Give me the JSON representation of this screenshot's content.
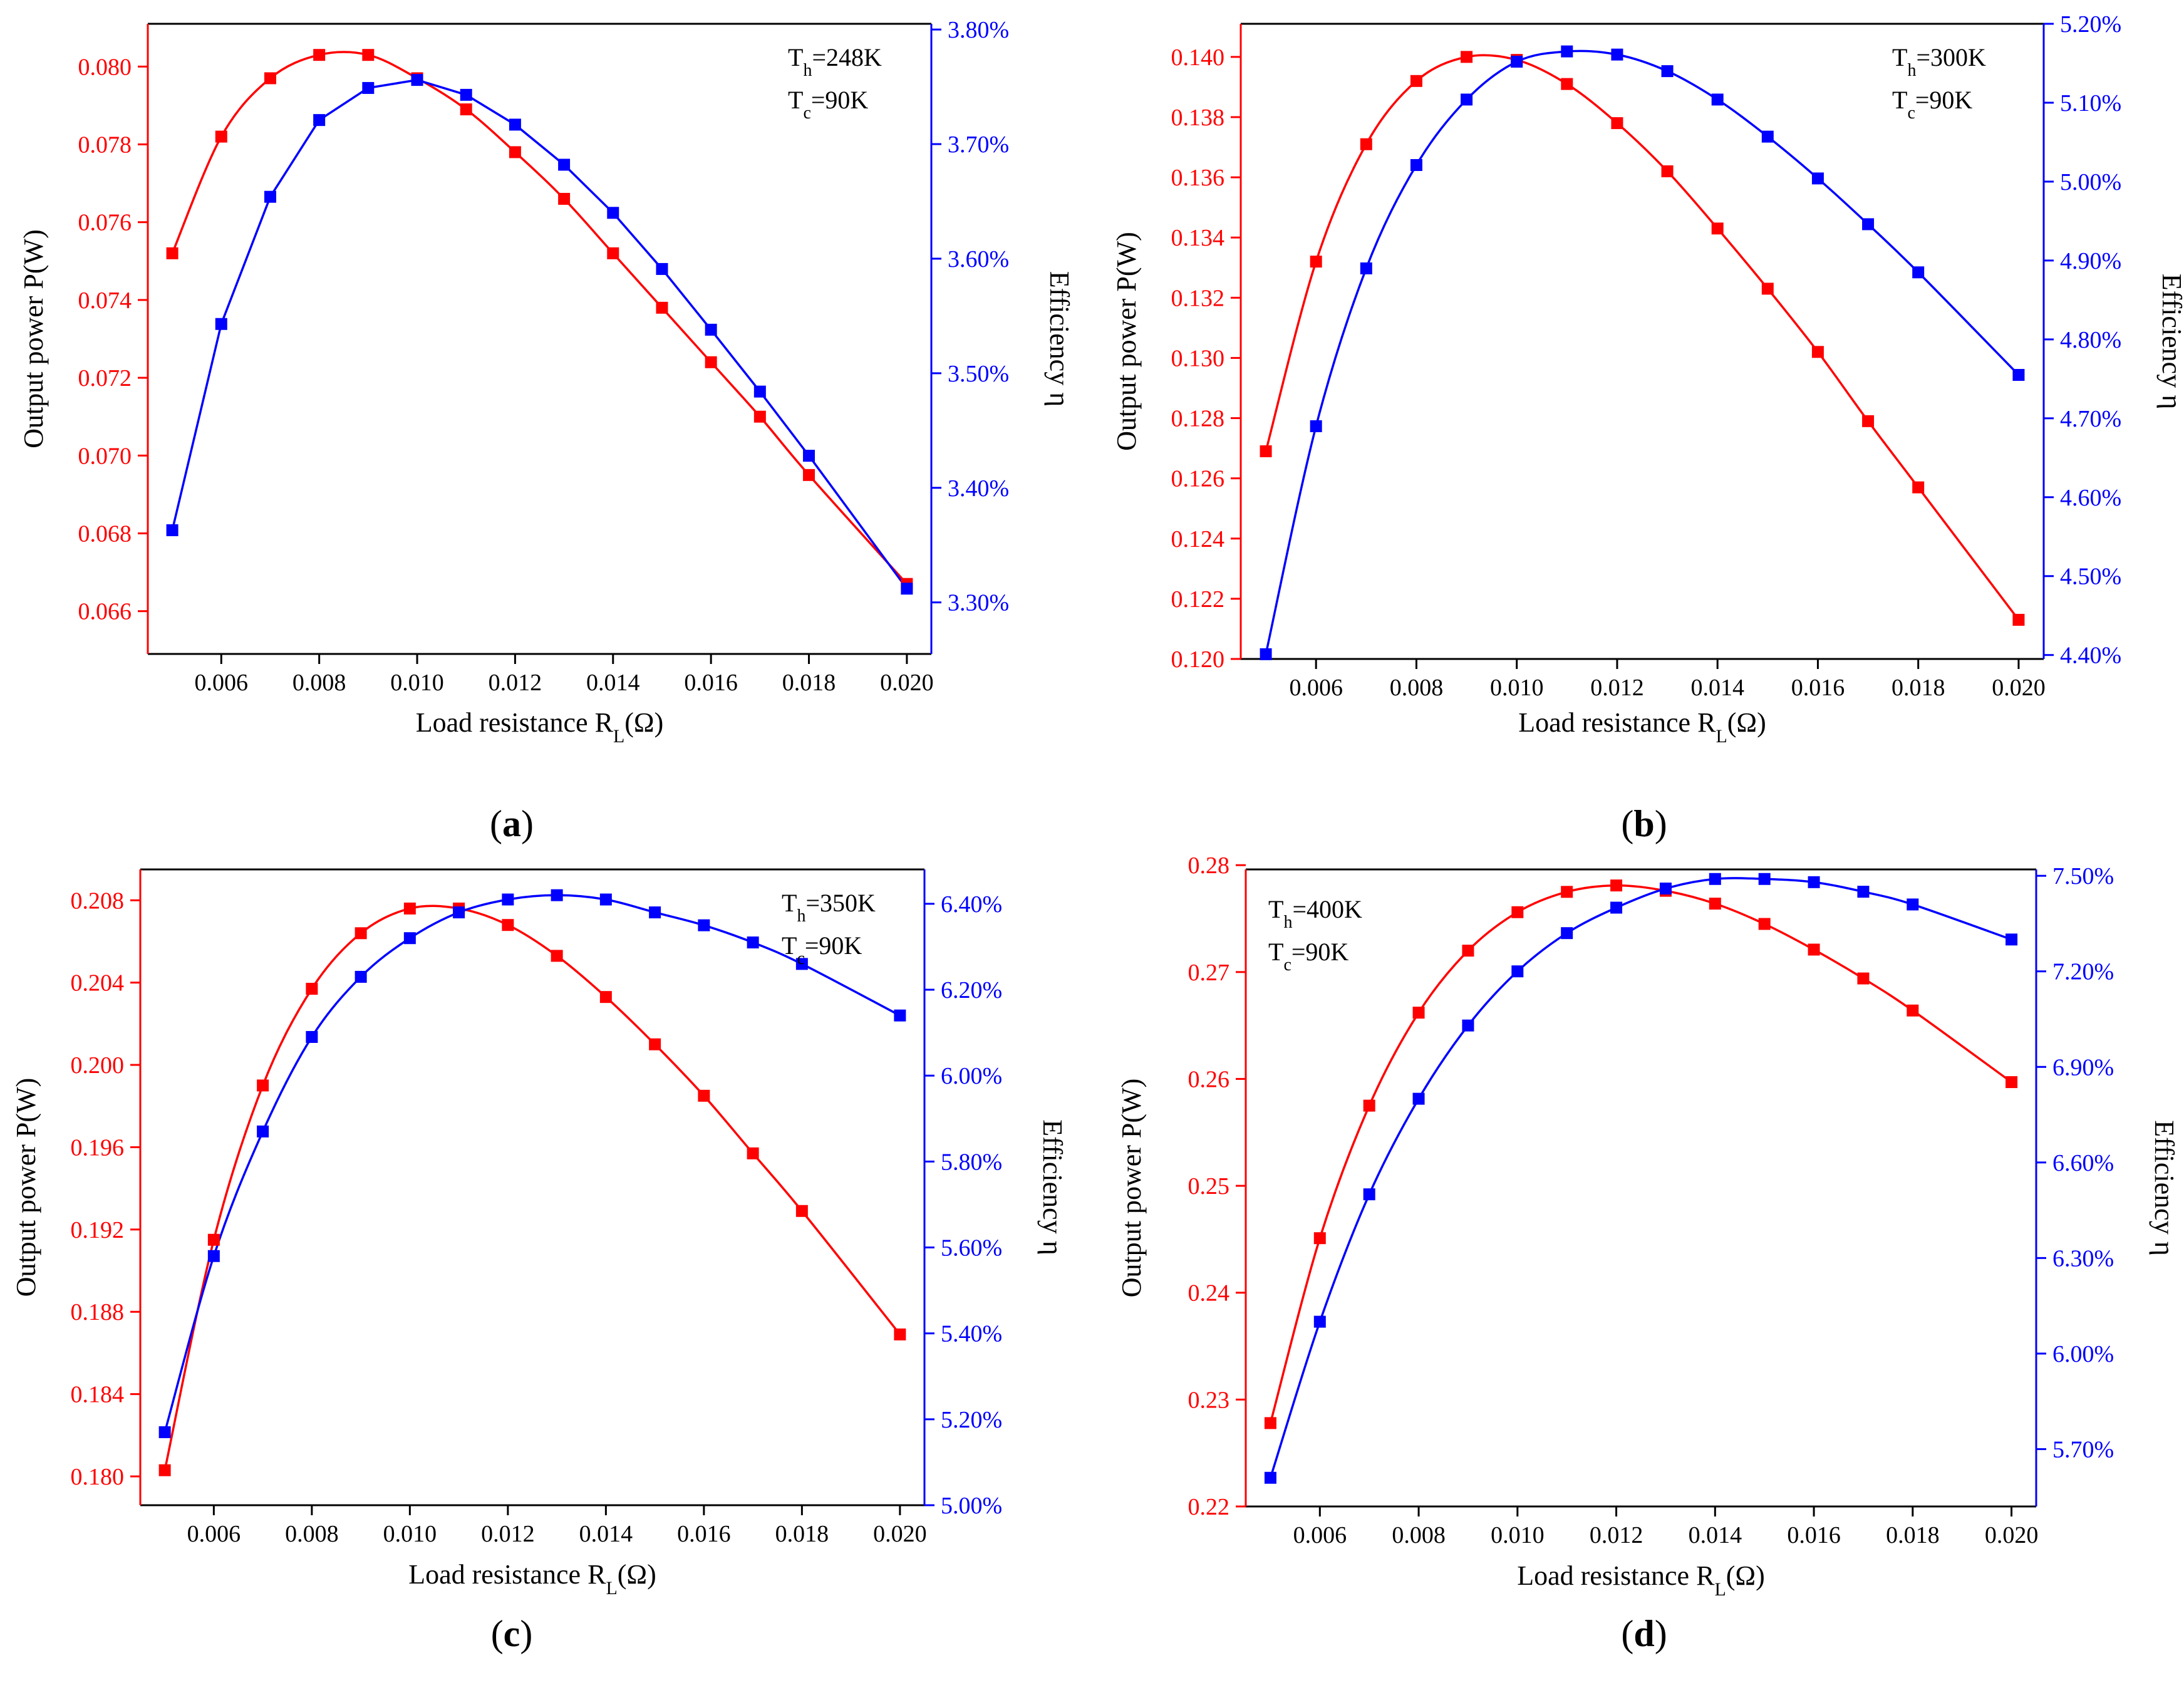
{
  "figure": {
    "colors": {
      "power": "#ff0000",
      "efficiency": "#0000ff",
      "axis": "#000000"
    }
  },
  "panels": [
    {
      "label": "a",
      "annotation": {
        "th": "248K",
        "tc": "90K",
        "position": "top-right"
      },
      "xlabel": "Load resistance",
      "ylabel_left": "Output power P(W)",
      "ylabel_right": "Efficiency η"
    },
    {
      "label": "b",
      "annotation": {
        "th": "300K",
        "tc": "90K",
        "position": "top-right"
      },
      "xlabel": "Load resistance",
      "ylabel_left": "Output power P(W)",
      "ylabel_right": "Efficiency η"
    },
    {
      "label": "c",
      "annotation": {
        "th": "350K",
        "tc": "90K",
        "position": "top-right"
      },
      "xlabel": "Load resistance",
      "ylabel_left": "Output power P(W)",
      "ylabel_right": "Efficiency η"
    },
    {
      "label": "d",
      "annotation": {
        "th": "400K",
        "tc": "90K",
        "position": "top-left"
      },
      "xlabel": "Load resistance",
      "ylabel_left": "Output power P(W)",
      "ylabel_right": "Efficiency η"
    }
  ],
  "chart_data": [
    {
      "type": "line",
      "panel": "a",
      "title": "",
      "xlabel": "Load resistance R_L(Ω)",
      "ylabel": "Output power P(W)",
      "y2label": "Efficiency η",
      "xlim": [
        0.0045,
        0.0205
      ],
      "ylim": [
        0.0649,
        0.0811
      ],
      "y2lim": [
        3.255,
        3.805
      ],
      "xticks": [
        0.006,
        0.008,
        0.01,
        0.012,
        0.014,
        0.016,
        0.018,
        0.02
      ],
      "xtick_labels": [
        "0.006",
        "0.008",
        "0.010",
        "0.012",
        "0.014",
        "0.016",
        "0.018",
        "0.020"
      ],
      "yticks": [
        0.066,
        0.068,
        0.07,
        0.072,
        0.074,
        0.076,
        0.078,
        0.08
      ],
      "ytick_labels": [
        "0.066",
        "0.068",
        "0.070",
        "0.072",
        "0.074",
        "0.076",
        "0.078",
        "0.080"
      ],
      "y2ticks": [
        3.3,
        3.4,
        3.5,
        3.6,
        3.7,
        3.8
      ],
      "y2tick_labels": [
        "3.30%",
        "3.40%",
        "3.50%",
        "3.60%",
        "3.70%",
        "3.80%"
      ],
      "power_smooth": true,
      "efficiency_smooth": false,
      "series": [
        {
          "name": "Output power P",
          "axis": "left",
          "x": [
            0.005,
            0.006,
            0.007,
            0.008,
            0.009,
            0.01,
            0.011,
            0.012,
            0.013,
            0.014,
            0.015,
            0.016,
            0.017,
            0.018,
            0.02
          ],
          "y": [
            0.0752,
            0.0782,
            0.0797,
            0.0803,
            0.0803,
            0.0797,
            0.0789,
            0.0778,
            0.0766,
            0.0752,
            0.0738,
            0.0724,
            0.071,
            0.0695,
            0.0667
          ]
        },
        {
          "name": "Efficiency η",
          "axis": "right",
          "x": [
            0.005,
            0.006,
            0.007,
            0.008,
            0.009,
            0.01,
            0.011,
            0.012,
            0.013,
            0.014,
            0.015,
            0.016,
            0.017,
            0.018,
            0.02
          ],
          "y": [
            3.363,
            3.543,
            3.654,
            3.721,
            3.749,
            3.756,
            3.743,
            3.717,
            3.682,
            3.64,
            3.591,
            3.538,
            3.484,
            3.428,
            3.312
          ]
        }
      ]
    },
    {
      "type": "line",
      "panel": "b",
      "title": "",
      "xlabel": "Load resistance R_L(Ω)",
      "ylabel": "Output power P(W)",
      "y2label": "Efficiency η",
      "xlim": [
        0.0045,
        0.0205
      ],
      "ylim": [
        0.12,
        0.1411
      ],
      "y2lim": [
        4.395,
        5.2
      ],
      "xticks": [
        0.006,
        0.008,
        0.01,
        0.012,
        0.014,
        0.016,
        0.018,
        0.02
      ],
      "xtick_labels": [
        "0.006",
        "0.008",
        "0.010",
        "0.012",
        "0.014",
        "0.016",
        "0.018",
        "0.020"
      ],
      "yticks": [
        0.12,
        0.122,
        0.124,
        0.126,
        0.128,
        0.13,
        0.132,
        0.134,
        0.136,
        0.138,
        0.14
      ],
      "ytick_labels": [
        "0.120",
        "0.122",
        "0.124",
        "0.126",
        "0.128",
        "0.130",
        "0.132",
        "0.134",
        "0.136",
        "0.138",
        "0.140"
      ],
      "y2ticks": [
        4.4,
        4.5,
        4.6,
        4.7,
        4.8,
        4.9,
        5.0,
        5.1,
        5.2
      ],
      "y2tick_labels": [
        "4.40%",
        "4.50%",
        "4.60%",
        "4.70%",
        "4.80%",
        "4.90%",
        "5.00%",
        "5.10%",
        "5.20%"
      ],
      "power_smooth": true,
      "efficiency_smooth": true,
      "series": [
        {
          "name": "Output power P",
          "axis": "left",
          "x": [
            0.005,
            0.006,
            0.007,
            0.008,
            0.009,
            0.01,
            0.011,
            0.012,
            0.013,
            0.014,
            0.015,
            0.016,
            0.017,
            0.018,
            0.02
          ],
          "y": [
            0.1269,
            0.1332,
            0.1371,
            0.1392,
            0.14,
            0.1399,
            0.1391,
            0.1378,
            0.1362,
            0.1343,
            0.1323,
            0.1302,
            0.1279,
            0.1257,
            0.1213
          ]
        },
        {
          "name": "Efficiency η",
          "axis": "right",
          "x": [
            0.005,
            0.006,
            0.007,
            0.008,
            0.009,
            0.01,
            0.011,
            0.012,
            0.013,
            0.014,
            0.015,
            0.016,
            0.017,
            0.018,
            0.02
          ],
          "y": [
            4.401,
            4.69,
            4.89,
            5.021,
            5.104,
            5.152,
            5.165,
            5.161,
            5.14,
            5.104,
            5.057,
            5.004,
            4.946,
            4.885,
            4.755
          ]
        }
      ]
    },
    {
      "type": "line",
      "panel": "c",
      "title": "",
      "xlabel": "Load resistance R_L(Ω)",
      "ylabel": "Output power P(W)",
      "y2label": "Efficiency η",
      "xlim": [
        0.0045,
        0.0205
      ],
      "ylim": [
        0.1786,
        0.2095
      ],
      "y2lim": [
        5.0,
        6.48
      ],
      "xticks": [
        0.006,
        0.008,
        0.01,
        0.012,
        0.014,
        0.016,
        0.018,
        0.02
      ],
      "xtick_labels": [
        "0.006",
        "0.008",
        "0.010",
        "0.012",
        "0.014",
        "0.016",
        "0.018",
        "0.020"
      ],
      "yticks": [
        0.18,
        0.184,
        0.188,
        0.192,
        0.196,
        0.2,
        0.204,
        0.208
      ],
      "ytick_labels": [
        "0.180",
        "0.184",
        "0.188",
        "0.192",
        "0.196",
        "0.200",
        "0.204",
        "0.208"
      ],
      "y2ticks": [
        5.0,
        5.2,
        5.4,
        5.6,
        5.8,
        6.0,
        6.2,
        6.4
      ],
      "y2tick_labels": [
        "5.00%",
        "5.20%",
        "5.40%",
        "5.60%",
        "5.80%",
        "6.00%",
        "6.20%",
        "6.40%"
      ],
      "power_smooth": true,
      "efficiency_smooth": true,
      "series": [
        {
          "name": "Output power P",
          "axis": "left",
          "x": [
            0.005,
            0.006,
            0.007,
            0.008,
            0.009,
            0.01,
            0.011,
            0.012,
            0.013,
            0.014,
            0.015,
            0.016,
            0.017,
            0.018,
            0.02
          ],
          "y": [
            0.1803,
            0.1915,
            0.199,
            0.2037,
            0.2064,
            0.2076,
            0.2076,
            0.2068,
            0.2053,
            0.2033,
            0.201,
            0.1985,
            0.1957,
            0.1929,
            0.1869
          ]
        },
        {
          "name": "Efficiency η",
          "axis": "right",
          "x": [
            0.005,
            0.006,
            0.007,
            0.008,
            0.009,
            0.01,
            0.011,
            0.012,
            0.013,
            0.014,
            0.015,
            0.016,
            0.017,
            0.018,
            0.02
          ],
          "y": [
            5.17,
            5.58,
            5.87,
            6.09,
            6.23,
            6.32,
            6.38,
            6.41,
            6.42,
            6.41,
            6.38,
            6.35,
            6.31,
            6.26,
            6.14
          ]
        }
      ]
    },
    {
      "type": "line",
      "panel": "d",
      "title": "",
      "xlabel": "Load resistance R_L(Ω)",
      "ylabel": "Output power P(W)",
      "y2label": "Efficiency η",
      "xlim": [
        0.0045,
        0.0205
      ],
      "ylim": [
        0.22,
        0.2796
      ],
      "y2lim": [
        5.52,
        7.52
      ],
      "xticks": [
        0.006,
        0.008,
        0.01,
        0.012,
        0.014,
        0.016,
        0.018,
        0.02
      ],
      "xtick_labels": [
        "0.006",
        "0.008",
        "0.010",
        "0.012",
        "0.014",
        "0.016",
        "0.018",
        "0.020"
      ],
      "yticks": [
        0.22,
        0.23,
        0.24,
        0.25,
        0.26,
        0.27,
        0.28
      ],
      "ytick_labels": [
        "0.22",
        "0.23",
        "0.24",
        "0.25",
        "0.26",
        "0.27",
        "0.28"
      ],
      "y2ticks": [
        5.7,
        6.0,
        6.3,
        6.6,
        6.9,
        7.2,
        7.5
      ],
      "y2tick_labels": [
        "5.70%",
        "6.00%",
        "6.30%",
        "6.60%",
        "6.90%",
        "7.20%",
        "7.50%"
      ],
      "power_smooth": true,
      "efficiency_smooth": true,
      "series": [
        {
          "name": "Output power P",
          "axis": "left",
          "x": [
            0.005,
            0.006,
            0.007,
            0.008,
            0.009,
            0.01,
            0.011,
            0.012,
            0.013,
            0.014,
            0.015,
            0.016,
            0.017,
            0.018,
            0.02
          ],
          "y": [
            0.2278,
            0.2451,
            0.2575,
            0.2662,
            0.272,
            0.2756,
            0.2775,
            0.2781,
            0.2776,
            0.2764,
            0.2745,
            0.2721,
            0.2694,
            0.2664,
            0.2597
          ]
        },
        {
          "name": "Efficiency η",
          "axis": "right",
          "x": [
            0.005,
            0.006,
            0.007,
            0.008,
            0.009,
            0.01,
            0.011,
            0.012,
            0.013,
            0.014,
            0.015,
            0.016,
            0.017,
            0.018,
            0.02
          ],
          "y": [
            5.61,
            6.1,
            6.5,
            6.8,
            7.03,
            7.2,
            7.32,
            7.4,
            7.46,
            7.49,
            7.49,
            7.48,
            7.45,
            7.41,
            7.3
          ]
        }
      ]
    }
  ]
}
